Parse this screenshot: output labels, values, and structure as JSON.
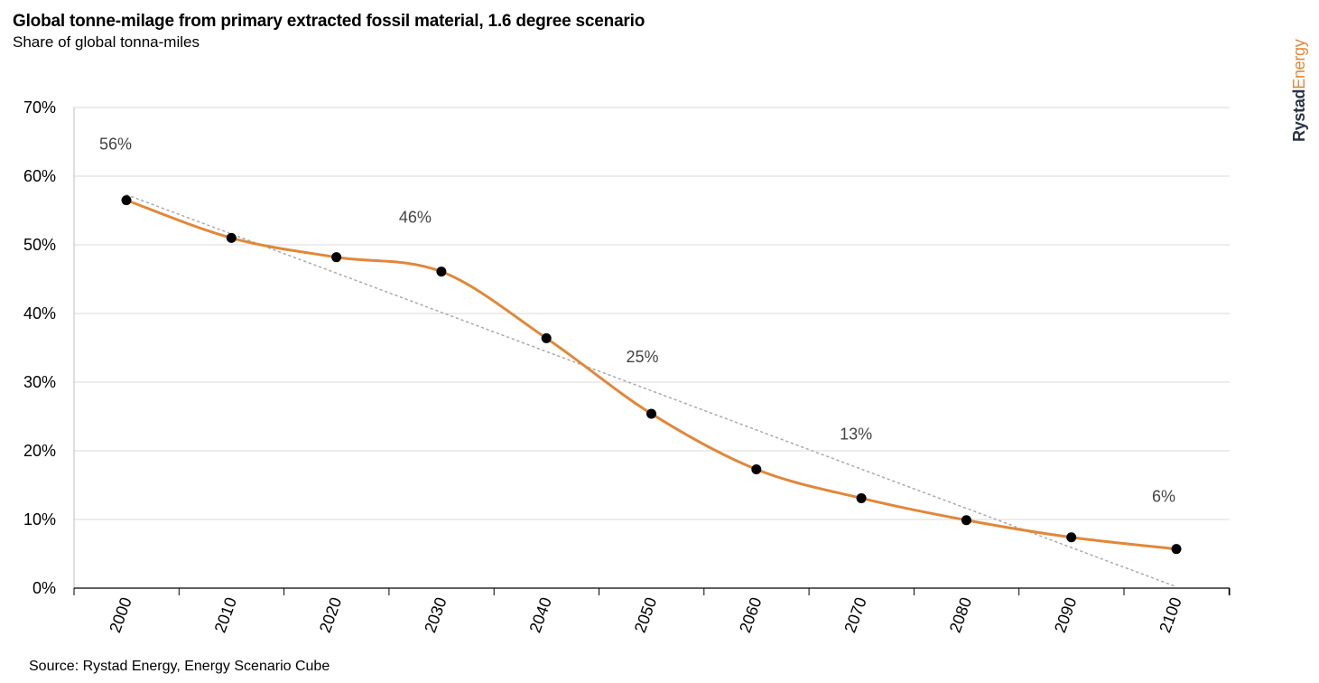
{
  "title": "Global tonne-milage from primary extracted fossil material, 1.6 degree scenario",
  "subtitle": "Share of global tonna-miles",
  "source": "Source: Rystad Energy, Energy Scenario Cube",
  "brand": {
    "part1": "Rystad",
    "part2": "Energy"
  },
  "colors": {
    "line": "#e0883a",
    "marker": "#000000",
    "trend": "#aaaaaa",
    "grid": "#d9d9d9",
    "brand_dark": "#2b3445",
    "brand_accent": "#e0883a"
  },
  "chart_data": {
    "type": "line",
    "title": "Global tonne-milage from primary extracted fossil material, 1.6 degree scenario",
    "subtitle": "Share of global tonna-miles",
    "xlabel": "",
    "ylabel": "",
    "x": [
      2000,
      2010,
      2020,
      2030,
      2040,
      2050,
      2060,
      2070,
      2080,
      2090,
      2100
    ],
    "series": [
      {
        "values": [
          56.5,
          51.0,
          48.2,
          46.1,
          36.4,
          25.4,
          17.3,
          13.1,
          9.9,
          7.4,
          5.7
        ]
      }
    ],
    "trendline": {
      "style": "dotted",
      "from": [
        2000,
        57.3
      ],
      "to": [
        2100,
        0.2
      ]
    },
    "data_labels": [
      {
        "x": 2000,
        "text": "56%"
      },
      {
        "x": 2030,
        "text": "46%"
      },
      {
        "x": 2050,
        "text": "25%"
      },
      {
        "x": 2070,
        "text": "13%"
      },
      {
        "x": 2100,
        "text": "6%"
      }
    ],
    "ylim": [
      0,
      70
    ],
    "yticks": [
      0,
      10,
      20,
      30,
      40,
      50,
      60,
      70
    ],
    "ytick_labels": [
      "0%",
      "10%",
      "20%",
      "30%",
      "40%",
      "50%",
      "60%",
      "70%"
    ],
    "xtick_labels": [
      "2000",
      "2010",
      "2020",
      "2030",
      "2040",
      "2050",
      "2060",
      "2070",
      "2080",
      "2090",
      "2100"
    ],
    "grid": true,
    "legend": "none"
  }
}
